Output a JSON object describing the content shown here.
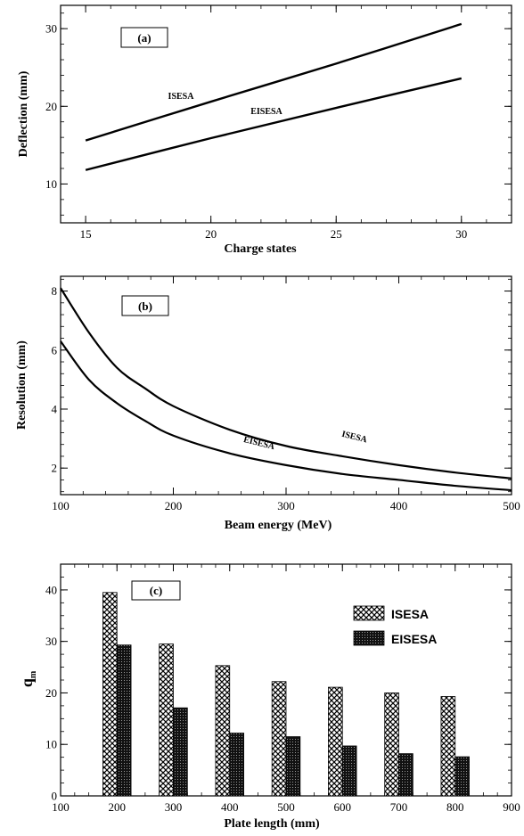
{
  "chart_data": [
    {
      "type": "line",
      "panel_label": "(a)",
      "xlabel": "Charge states",
      "ylabel": "Deflection (mm)",
      "xlim": [
        14,
        32
      ],
      "ylim": [
        5,
        33
      ],
      "xticks": [
        15,
        20,
        25,
        30
      ],
      "yticks": [
        10,
        20,
        30
      ],
      "series": [
        {
          "name": "ISESA",
          "x": [
            15,
            20,
            25,
            30
          ],
          "y": [
            15.6,
            20.6,
            25.5,
            30.6
          ]
        },
        {
          "name": "EISESA",
          "x": [
            15,
            20,
            25,
            30
          ],
          "y": [
            11.8,
            15.9,
            19.8,
            23.6
          ]
        }
      ]
    },
    {
      "type": "line",
      "panel_label": "(b)",
      "xlabel": "Beam energy (MeV)",
      "ylabel": "Resolution (mm)",
      "xlim": [
        100,
        500
      ],
      "ylim": [
        1.1,
        8.5
      ],
      "xticks": [
        100,
        200,
        300,
        400,
        500
      ],
      "yticks": [
        2,
        4,
        6,
        8
      ],
      "series": [
        {
          "name": "ISESA",
          "x": [
            100,
            125,
            150,
            175,
            200,
            250,
            300,
            350,
            400,
            450,
            500
          ],
          "y": [
            8.1,
            6.6,
            5.4,
            4.7,
            4.1,
            3.3,
            2.75,
            2.4,
            2.1,
            1.85,
            1.65
          ]
        },
        {
          "name": "EISESA",
          "x": [
            100,
            125,
            150,
            175,
            200,
            250,
            300,
            350,
            400,
            450,
            500
          ],
          "y": [
            6.3,
            5.0,
            4.2,
            3.6,
            3.1,
            2.5,
            2.1,
            1.8,
            1.6,
            1.4,
            1.25
          ]
        }
      ]
    },
    {
      "type": "bar",
      "panel_label": "(c)",
      "xlabel": "Plate length (mm)",
      "ylabel": "q",
      "ylabel_sub": "m",
      "xlim": [
        100,
        900
      ],
      "ylim": [
        0,
        45
      ],
      "xticks": [
        100,
        200,
        300,
        400,
        500,
        600,
        700,
        800,
        900
      ],
      "yticks": [
        0,
        10,
        20,
        30,
        40
      ],
      "legend_position": "top-right",
      "categories": [
        200,
        300,
        400,
        500,
        600,
        700,
        800
      ],
      "series": [
        {
          "name": "ISESA",
          "values": [
            39.5,
            29.5,
            25.3,
            22.2,
            21.1,
            20.0,
            19.3
          ]
        },
        {
          "name": "EISESA",
          "values": [
            29.3,
            17.1,
            12.2,
            11.5,
            9.7,
            8.2,
            7.6
          ]
        }
      ]
    }
  ]
}
